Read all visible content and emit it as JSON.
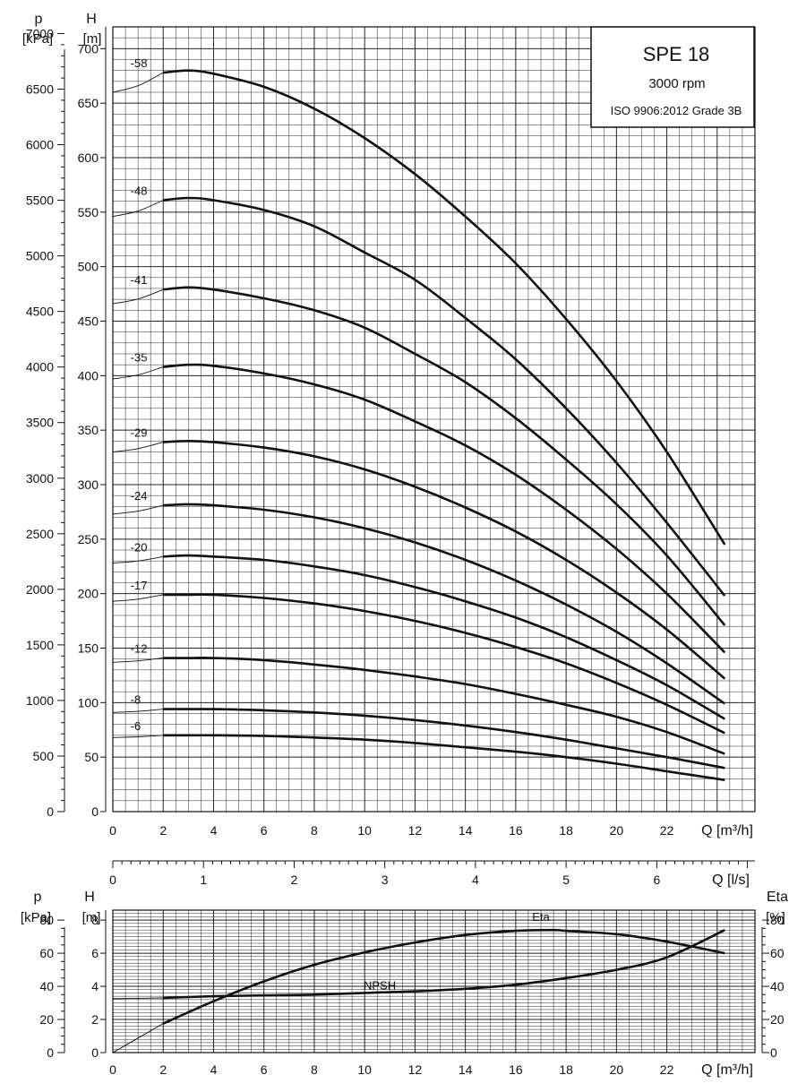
{
  "title_box": {
    "model": "SPE 18",
    "speed": "3000 rpm",
    "standard": "ISO 9906:2012 Grade 3B"
  },
  "chart_data": [
    {
      "type": "line",
      "name": "head-curves",
      "x_unit_label": "Q [m³/h]",
      "y_label_H": "H",
      "y_unit_H": "[m]",
      "y_label_p": "p",
      "y_unit_p": "[kPa]",
      "xlim": [
        0,
        25.5
      ],
      "ylim_H": [
        0,
        720
      ],
      "ylim_p": [
        0,
        7060
      ],
      "x_ticks": [
        "0",
        "2",
        "4",
        "6",
        "8",
        "10",
        "12",
        "14",
        "16",
        "18",
        "20",
        "22"
      ],
      "H_ticks": [
        "0",
        "50",
        "100",
        "150",
        "200",
        "250",
        "300",
        "350",
        "400",
        "450",
        "500",
        "550",
        "600",
        "650",
        "700"
      ],
      "p_ticks": [
        "0",
        "500",
        "1000",
        "1500",
        "2000",
        "2500",
        "3000",
        "3500",
        "4000",
        "4500",
        "5000",
        "5500",
        "6000",
        "6500",
        "7000"
      ],
      "series": [
        {
          "name": "-58",
          "shutoff": 660,
          "points": [
            [
              2,
              678
            ],
            [
              3,
              680
            ],
            [
              4,
              677
            ],
            [
              6,
              665
            ],
            [
              8,
              645
            ],
            [
              10,
              618
            ],
            [
              12,
              585
            ],
            [
              14,
              546
            ],
            [
              16,
              503
            ],
            [
              18,
              452
            ],
            [
              20,
              395
            ],
            [
              22,
              330
            ],
            [
              24.3,
              245
            ]
          ]
        },
        {
          "name": "-48",
          "shutoff": 546,
          "points": [
            [
              2,
              561
            ],
            [
              3,
              563
            ],
            [
              4,
              561
            ],
            [
              6,
              552
            ],
            [
              8,
              537
            ],
            [
              10,
              513
            ],
            [
              12,
              488
            ],
            [
              14,
              453
            ],
            [
              16,
              415
            ],
            [
              18,
              370
            ],
            [
              20,
              320
            ],
            [
              22,
              265
            ],
            [
              24.3,
              198
            ]
          ]
        },
        {
          "name": "-41",
          "shutoff": 466,
          "points": [
            [
              2,
              479
            ],
            [
              3,
              481
            ],
            [
              4,
              479
            ],
            [
              6,
              471
            ],
            [
              8,
              460
            ],
            [
              10,
              444
            ],
            [
              12,
              420
            ],
            [
              14,
              394
            ],
            [
              16,
              361
            ],
            [
              18,
              323
            ],
            [
              20,
              282
            ],
            [
              22,
              235
            ],
            [
              24.3,
              171
            ]
          ]
        },
        {
          "name": "-35",
          "shutoff": 397,
          "points": [
            [
              2,
              408
            ],
            [
              3,
              410
            ],
            [
              4,
              409
            ],
            [
              6,
              402
            ],
            [
              8,
              392
            ],
            [
              10,
              378
            ],
            [
              12,
              358
            ],
            [
              14,
              336
            ],
            [
              16,
              309
            ],
            [
              18,
              277
            ],
            [
              20,
              241
            ],
            [
              22,
              200
            ],
            [
              24.3,
              146
            ]
          ]
        },
        {
          "name": "-29",
          "shutoff": 330,
          "points": [
            [
              2,
              339
            ],
            [
              3,
              340
            ],
            [
              4,
              339
            ],
            [
              6,
              334
            ],
            [
              8,
              326
            ],
            [
              10,
              314
            ],
            [
              12,
              298
            ],
            [
              14,
              279
            ],
            [
              16,
              257
            ],
            [
              18,
              231
            ],
            [
              20,
              201
            ],
            [
              22,
              167
            ],
            [
              24.3,
              122
            ]
          ]
        },
        {
          "name": "-24",
          "shutoff": 273,
          "points": [
            [
              2,
              281
            ],
            [
              3,
              282
            ],
            [
              4,
              281
            ],
            [
              6,
              277
            ],
            [
              8,
              270
            ],
            [
              10,
              260
            ],
            [
              12,
              247
            ],
            [
              14,
              231
            ],
            [
              16,
              212
            ],
            [
              18,
              190
            ],
            [
              20,
              165
            ],
            [
              22,
              136
            ],
            [
              24.3,
              99
            ]
          ]
        },
        {
          "name": "-20",
          "shutoff": 228,
          "points": [
            [
              2,
              234
            ],
            [
              3,
              235
            ],
            [
              4,
              234
            ],
            [
              6,
              231
            ],
            [
              8,
              225
            ],
            [
              10,
              217
            ],
            [
              12,
              206
            ],
            [
              14,
              193
            ],
            [
              16,
              178
            ],
            [
              18,
              160
            ],
            [
              20,
              139
            ],
            [
              22,
              116
            ],
            [
              24.3,
              85
            ]
          ]
        },
        {
          "name": "-17",
          "shutoff": 193,
          "points": [
            [
              2,
              199
            ],
            [
              3,
              199
            ],
            [
              4,
              199
            ],
            [
              6,
              196
            ],
            [
              8,
              191
            ],
            [
              10,
              184
            ],
            [
              12,
              175
            ],
            [
              14,
              164
            ],
            [
              16,
              151
            ],
            [
              18,
              136
            ],
            [
              20,
              118
            ],
            [
              22,
              98
            ],
            [
              24.3,
              72
            ]
          ]
        },
        {
          "name": "-12",
          "shutoff": 137,
          "points": [
            [
              2,
              141
            ],
            [
              3,
              141
            ],
            [
              4,
              141
            ],
            [
              6,
              139
            ],
            [
              8,
              135
            ],
            [
              10,
              130
            ],
            [
              12,
              124
            ],
            [
              14,
              117
            ],
            [
              16,
              108
            ],
            [
              18,
              98
            ],
            [
              20,
              87
            ],
            [
              22,
              73
            ],
            [
              24.3,
              53
            ]
          ]
        },
        {
          "name": "-8",
          "shutoff": 91,
          "points": [
            [
              2,
              94
            ],
            [
              3,
              94
            ],
            [
              4,
              94
            ],
            [
              6,
              93
            ],
            [
              8,
              91
            ],
            [
              10,
              88
            ],
            [
              12,
              84
            ],
            [
              14,
              79
            ],
            [
              16,
              73
            ],
            [
              18,
              66
            ],
            [
              20,
              58
            ],
            [
              22,
              50
            ],
            [
              24.3,
              40
            ]
          ]
        },
        {
          "name": "-6",
          "shutoff": 68,
          "points": [
            [
              2,
              70
            ],
            [
              3,
              70
            ],
            [
              4,
              70
            ],
            [
              6,
              69.5
            ],
            [
              8,
              68
            ],
            [
              10,
              66
            ],
            [
              12,
              63
            ],
            [
              14,
              59
            ],
            [
              16,
              55
            ],
            [
              18,
              50
            ],
            [
              20,
              44
            ],
            [
              22,
              37
            ],
            [
              24.3,
              29
            ]
          ]
        }
      ]
    },
    {
      "type": "line",
      "name": "flow-scale",
      "x_unit_label": "Q [l/s]",
      "x_ticks": [
        "0",
        "1",
        "2",
        "3",
        "4",
        "5",
        "6"
      ]
    },
    {
      "type": "line",
      "name": "npsh-eta",
      "x_unit_label": "Q [m³/h]",
      "y_label_H": "H",
      "y_unit_H": "[m]",
      "y_label_p": "p",
      "y_unit_p": "[kPa]",
      "y_label_eta": "Eta",
      "y_unit_eta": "[%]",
      "xlim": [
        0,
        25.5
      ],
      "ylim_H": [
        0,
        8.6
      ],
      "x_ticks": [
        "0",
        "2",
        "4",
        "6",
        "8",
        "10",
        "12",
        "14",
        "16",
        "18",
        "20",
        "22"
      ],
      "H_ticks": [
        "0",
        "2",
        "4",
        "6",
        "8"
      ],
      "p_ticks": [
        "0",
        "20",
        "40",
        "60",
        "80"
      ],
      "eta_ticks": [
        "0",
        "20",
        "40",
        "60",
        "80"
      ],
      "series": [
        {
          "name": "NPSH",
          "unit": "m",
          "points": [
            [
              0,
              3.25
            ],
            [
              2,
              3.3
            ],
            [
              4,
              3.4
            ],
            [
              6,
              3.45
            ],
            [
              8,
              3.5
            ],
            [
              10,
              3.6
            ],
            [
              12,
              3.7
            ],
            [
              14,
              3.85
            ],
            [
              16,
              4.1
            ],
            [
              18,
              4.5
            ],
            [
              20,
              5.0
            ],
            [
              22,
              5.75
            ],
            [
              24.3,
              7.4
            ]
          ]
        },
        {
          "name": "Eta",
          "unit": "%",
          "points": [
            [
              0,
              0
            ],
            [
              2,
              17.5
            ],
            [
              4,
              31
            ],
            [
              6,
              43
            ],
            [
              8,
              53
            ],
            [
              10,
              60.5
            ],
            [
              12,
              66.5
            ],
            [
              14,
              71
            ],
            [
              16,
              73.5
            ],
            [
              17.5,
              74
            ],
            [
              18,
              73.5
            ],
            [
              20,
              71.5
            ],
            [
              22,
              67
            ],
            [
              24.3,
              60
            ]
          ]
        }
      ]
    }
  ]
}
